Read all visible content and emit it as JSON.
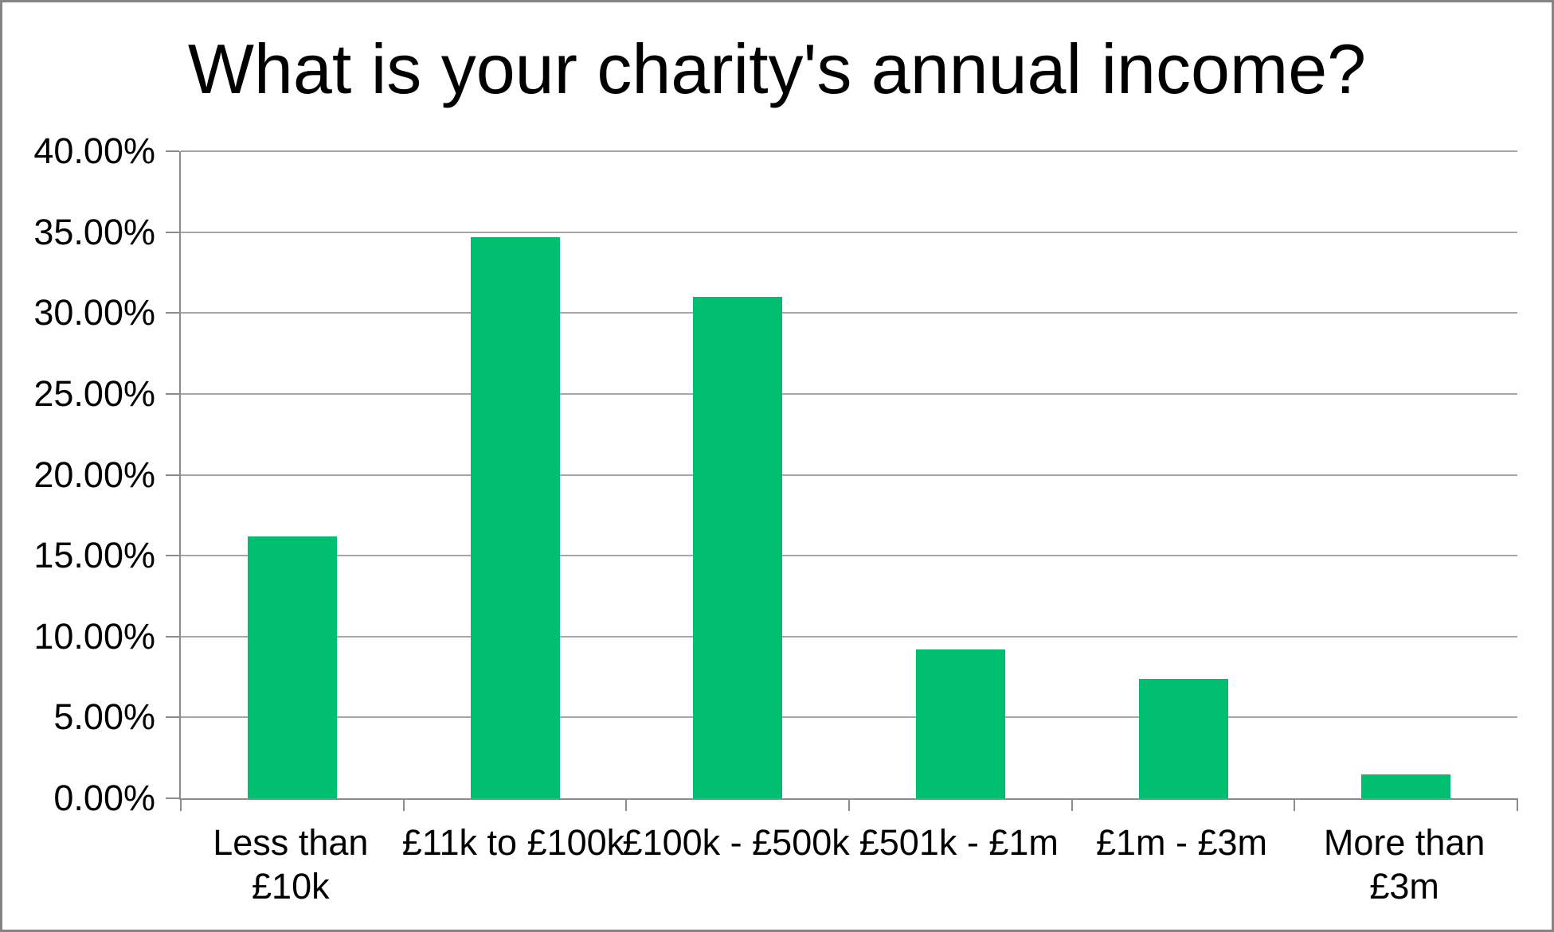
{
  "chart_data": {
    "type": "bar",
    "title": "What is your charity's annual income?",
    "categories": [
      "Less than £10k",
      "£11k to £100k",
      "£100k - £500k",
      "£501k - £1m",
      "£1m - £3m",
      "More than £3m"
    ],
    "category_labels": [
      "Less than\n£10k",
      "£11k to £100k",
      "£100k - £500k",
      "£501k - £1m",
      "£1m - £3m",
      "More than\n£3m"
    ],
    "values": [
      16.2,
      34.7,
      31.0,
      9.2,
      7.4,
      1.5
    ],
    "value_unit": "%",
    "xlabel": "",
    "ylabel": "",
    "ylim": [
      0,
      40
    ],
    "ytick_step": 5,
    "ytick_labels": [
      "0.00%",
      "5.00%",
      "10.00%",
      "15.00%",
      "20.00%",
      "25.00%",
      "30.00%",
      "35.00%",
      "40.00%"
    ],
    "grid": true,
    "legend_position": "none",
    "colors": {
      "bar": "#00BF70",
      "gridline": "#A6A6A6",
      "axis_line": "#8C8C8C",
      "outer_border": "#848484",
      "text": "#000000",
      "background": "#FFFFFF"
    }
  }
}
